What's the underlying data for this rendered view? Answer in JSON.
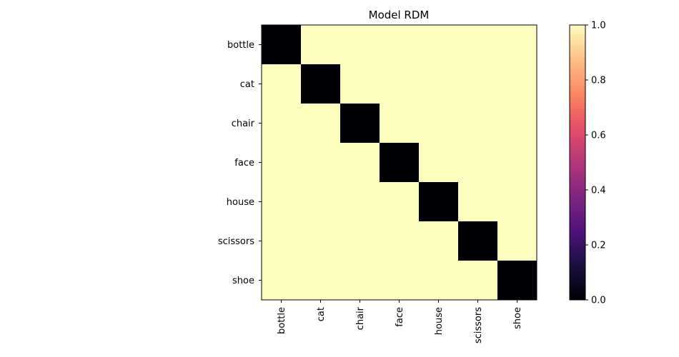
{
  "chart_data": {
    "type": "heatmap",
    "title": "Model RDM",
    "xlabel": "",
    "ylabel": "",
    "row_labels": [
      "bottle",
      "cat",
      "chair",
      "face",
      "house",
      "scissors",
      "shoe"
    ],
    "col_labels": [
      "bottle",
      "cat",
      "chair",
      "face",
      "house",
      "scissors",
      "shoe"
    ],
    "values": [
      [
        0,
        1,
        1,
        1,
        1,
        1,
        1
      ],
      [
        1,
        0,
        1,
        1,
        1,
        1,
        1
      ],
      [
        1,
        1,
        0,
        1,
        1,
        1,
        1
      ],
      [
        1,
        1,
        1,
        0,
        1,
        1,
        1
      ],
      [
        1,
        1,
        1,
        1,
        0,
        1,
        1
      ],
      [
        1,
        1,
        1,
        1,
        1,
        0,
        1
      ],
      [
        1,
        1,
        1,
        1,
        1,
        1,
        0
      ]
    ],
    "colormap": "magma",
    "colorbar": {
      "range": [
        0,
        1
      ],
      "ticks": [
        0.0,
        0.2,
        0.4,
        0.6,
        0.8,
        1.0
      ],
      "tick_labels": [
        "0.0",
        "0.2",
        "0.4",
        "0.6",
        "0.8",
        "1.0"
      ]
    },
    "grid": false
  }
}
